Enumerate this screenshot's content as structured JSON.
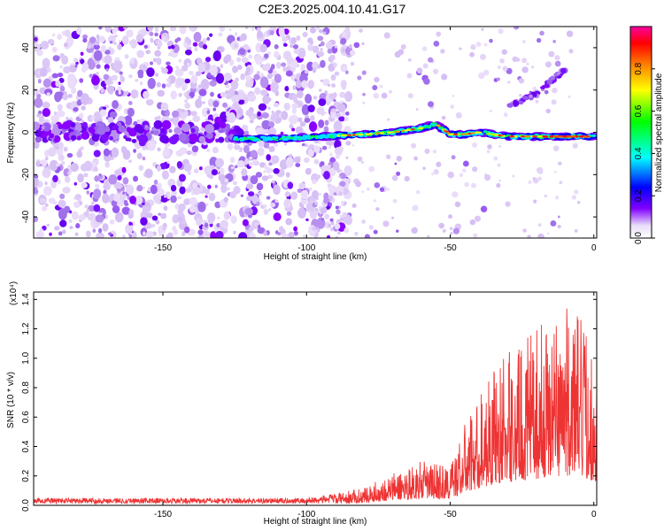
{
  "title": "C2E3.2025.004.10.41.G17",
  "chart_data": [
    {
      "type": "heatmap",
      "title": "C2E3.2025.004.10.41.G17",
      "xlabel": "Height of straight line (km)",
      "ylabel": "Frequency (Hz)",
      "xlim": [
        -195,
        1
      ],
      "ylim": [
        -50,
        50
      ],
      "xticks": [
        -150,
        -100,
        -50,
        0
      ],
      "yticks": [
        -40,
        -20,
        0,
        20,
        40
      ],
      "colorbar": {
        "label": "Normalized spectral amplitude",
        "range": [
          0,
          1
        ],
        "ticks": [
          "0.0",
          "0.2",
          "0.4",
          "0.6",
          "0.8"
        ],
        "tick_values": [
          0,
          0.2,
          0.4,
          0.6,
          0.8
        ],
        "colormap": [
          "#e8dcf8",
          "#8000ff",
          "#0000ff",
          "#00ffff",
          "#00ff00",
          "#ffff00",
          "#ff8000",
          "#ff0000",
          "#ff00a0"
        ]
      },
      "ridge": {
        "x": [
          -125,
          -110,
          -95,
          -80,
          -70,
          -60,
          -55,
          -50,
          -45,
          -40,
          -30,
          -20,
          -10,
          0
        ],
        "frequency": [
          -3,
          -3,
          -2,
          -1,
          0,
          2,
          4,
          -1,
          -1,
          0,
          -2,
          -2,
          -2,
          -2
        ]
      },
      "branch": {
        "x": [
          -30,
          -20,
          -15,
          -10
        ],
        "frequency": [
          12,
          18,
          24,
          30
        ]
      }
    },
    {
      "type": "line",
      "xlabel": "Height of straight line (km)",
      "ylabel": "SNR (10 * v/v)",
      "scale_label": "(x10⁴)",
      "xlim": [
        -195,
        1
      ],
      "ylim": [
        0,
        1.45
      ],
      "xticks": [
        -150,
        -100,
        -50,
        0
      ],
      "yticks": [
        "0.0",
        "0.2",
        "0.4",
        "0.6",
        "0.8",
        "1.0",
        "1.2",
        "1.4"
      ],
      "ytick_values": [
        0,
        0.2,
        0.4,
        0.6,
        0.8,
        1.0,
        1.2,
        1.4
      ],
      "color": "#ee3333",
      "series": [
        {
          "envelope_x": [
            -195,
            -120,
            -100,
            -90,
            -80,
            -70,
            -60,
            -50,
            -45,
            -40,
            -35,
            -30,
            -25,
            -20,
            -15,
            -10,
            -5,
            0
          ],
          "envelope_y": [
            0.05,
            0.05,
            0.05,
            0.08,
            0.12,
            0.22,
            0.3,
            0.28,
            0.55,
            0.75,
            0.95,
            1.05,
            1.1,
            1.2,
            1.3,
            1.35,
            1.3,
            1.1
          ]
        }
      ]
    }
  ]
}
